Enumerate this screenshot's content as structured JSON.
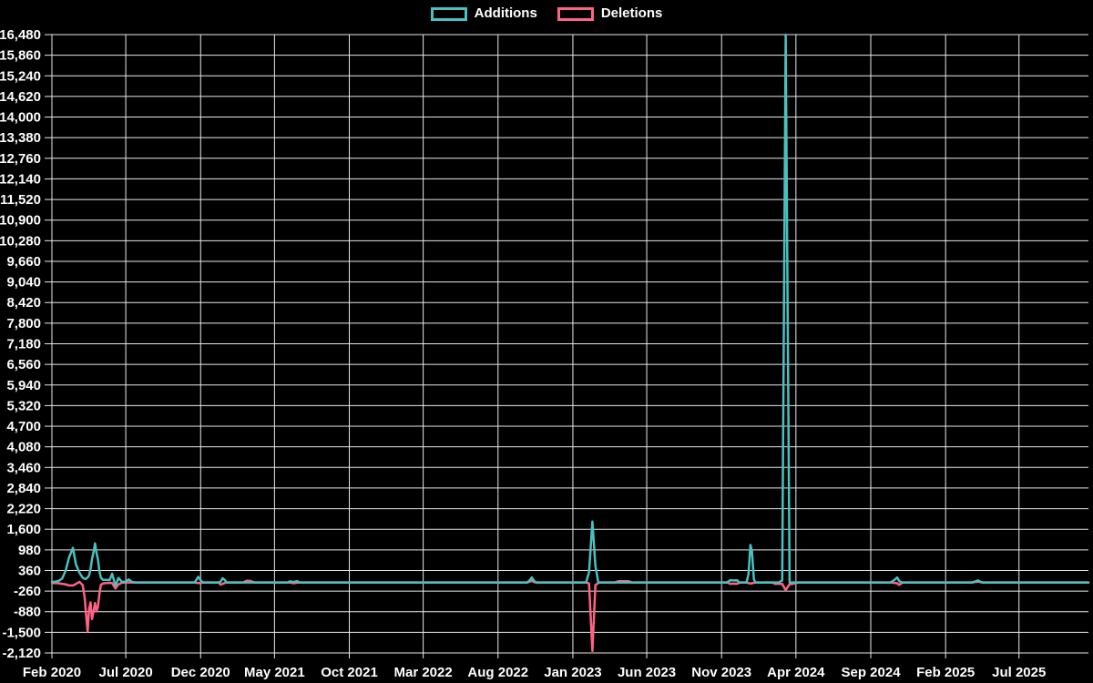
{
  "chart_data": {
    "type": "line",
    "title": "",
    "background": "#000000",
    "text_color": "#ffffff",
    "grid_color": "#e9e9e9",
    "legend_position": "top-center",
    "grid": true,
    "y_axis": {
      "min": -2120,
      "max": 16480,
      "step": 620
    },
    "x_axis": {
      "domain": [
        "2020-02-01",
        "2025-11-20"
      ],
      "ticks": [
        {
          "label": "Feb 2020",
          "date": "2020-02-01"
        },
        {
          "label": "Jul 2020",
          "date": "2020-07-01"
        },
        {
          "label": "Dec 2020",
          "date": "2020-12-01"
        },
        {
          "label": "May 2021",
          "date": "2021-05-01"
        },
        {
          "label": "Oct 2021",
          "date": "2021-10-01"
        },
        {
          "label": "Mar 2022",
          "date": "2022-03-01"
        },
        {
          "label": "Aug 2022",
          "date": "2022-08-01"
        },
        {
          "label": "Jan 2023",
          "date": "2023-01-01"
        },
        {
          "label": "Jun 2023",
          "date": "2023-06-01"
        },
        {
          "label": "Nov 2023",
          "date": "2023-11-01"
        },
        {
          "label": "Apr 2024",
          "date": "2024-04-01"
        },
        {
          "label": "Sep 2024",
          "date": "2024-09-01"
        },
        {
          "label": "Feb 2025",
          "date": "2025-02-01"
        },
        {
          "label": "Jul 2025",
          "date": "2025-07-01"
        }
      ]
    },
    "series": [
      {
        "name": "Additions",
        "color": "#4bc0c0"
      },
      {
        "name": "Deletions",
        "color": "#ff6384"
      }
    ],
    "points": [
      [
        "2020-02-01",
        20,
        -15
      ],
      [
        "2020-02-08",
        25,
        -20
      ],
      [
        "2020-02-15",
        50,
        -25
      ],
      [
        "2020-02-22",
        120,
        -40
      ],
      [
        "2020-02-29",
        350,
        -55
      ],
      [
        "2020-03-07",
        750,
        -90
      ],
      [
        "2020-03-15",
        1040,
        -90
      ],
      [
        "2020-03-21",
        550,
        -45
      ],
      [
        "2020-03-28",
        300,
        20
      ],
      [
        "2020-04-04",
        140,
        -80
      ],
      [
        "2020-04-08",
        110,
        -460
      ],
      [
        "2020-04-11",
        110,
        -1000
      ],
      [
        "2020-04-14",
        150,
        -1470
      ],
      [
        "2020-04-17",
        210,
        -800
      ],
      [
        "2020-04-20",
        400,
        -600
      ],
      [
        "2020-04-23",
        700,
        -1100
      ],
      [
        "2020-04-26",
        900,
        -880
      ],
      [
        "2020-04-29",
        1175,
        -620
      ],
      [
        "2020-05-02",
        900,
        -860
      ],
      [
        "2020-05-05",
        700,
        -740
      ],
      [
        "2020-05-08",
        350,
        -350
      ],
      [
        "2020-05-11",
        150,
        -80
      ],
      [
        "2020-05-15",
        80,
        -30
      ],
      [
        "2020-05-22",
        80,
        -15
      ],
      [
        "2020-05-29",
        75,
        -10
      ],
      [
        "2020-06-03",
        265,
        -20
      ],
      [
        "2020-06-10",
        -100,
        -180
      ],
      [
        "2020-06-16",
        140,
        -60
      ],
      [
        "2020-06-23",
        20,
        -10
      ],
      [
        "2020-06-30",
        20,
        0
      ],
      [
        "2020-07-07",
        90,
        0
      ],
      [
        "2020-07-14",
        15,
        0
      ],
      [
        "2020-07-21",
        0,
        0
      ],
      [
        "2020-11-19",
        0,
        0
      ],
      [
        "2020-11-26",
        170,
        -20
      ],
      [
        "2020-12-03",
        30,
        -10
      ],
      [
        "2020-12-06",
        0,
        0
      ],
      [
        "2021-01-07",
        0,
        0
      ],
      [
        "2021-01-11",
        30,
        -65
      ],
      [
        "2021-01-15",
        125,
        -40
      ],
      [
        "2021-01-19",
        80,
        -15
      ],
      [
        "2021-01-23",
        0,
        0
      ],
      [
        "2021-02-26",
        0,
        0
      ],
      [
        "2021-03-05",
        0,
        50
      ],
      [
        "2021-03-12",
        0,
        48
      ],
      [
        "2021-03-19",
        0,
        10
      ],
      [
        "2021-03-22",
        0,
        0
      ],
      [
        "2021-05-28",
        0,
        0
      ],
      [
        "2021-06-02",
        35,
        -5
      ],
      [
        "2021-06-09",
        10,
        -22
      ],
      [
        "2021-06-16",
        40,
        -8
      ],
      [
        "2021-06-21",
        0,
        0
      ],
      [
        "2022-09-30",
        0,
        0
      ],
      [
        "2022-10-05",
        70,
        25
      ],
      [
        "2022-10-09",
        150,
        55
      ],
      [
        "2022-10-14",
        40,
        15
      ],
      [
        "2022-10-18",
        0,
        0
      ],
      [
        "2023-01-28",
        0,
        0
      ],
      [
        "2023-02-03",
        310,
        -30
      ],
      [
        "2023-02-10",
        1830,
        -2060
      ],
      [
        "2023-02-16",
        500,
        -80
      ],
      [
        "2023-02-22",
        0,
        -10
      ],
      [
        "2023-02-28",
        0,
        0
      ],
      [
        "2023-03-28",
        0,
        0
      ],
      [
        "2023-04-04",
        0,
        35
      ],
      [
        "2023-04-25",
        0,
        35
      ],
      [
        "2023-05-02",
        0,
        0
      ],
      [
        "2023-11-12",
        0,
        0
      ],
      [
        "2023-11-19",
        70,
        -40
      ],
      [
        "2023-11-26",
        60,
        -35
      ],
      [
        "2023-12-03",
        65,
        -38
      ],
      [
        "2023-12-07",
        0,
        -10
      ],
      [
        "2023-12-10",
        0,
        0
      ],
      [
        "2023-12-22",
        0,
        0
      ],
      [
        "2023-12-26",
        250,
        -20
      ],
      [
        "2023-12-30",
        1130,
        -30
      ],
      [
        "2024-01-02",
        950,
        -25
      ],
      [
        "2024-01-06",
        100,
        -10
      ],
      [
        "2024-01-09",
        0,
        0
      ],
      [
        "2024-02-12",
        0,
        0
      ],
      [
        "2024-02-19",
        0,
        -40
      ],
      [
        "2024-02-26",
        0,
        -40
      ],
      [
        "2024-03-04",
        60,
        -45
      ],
      [
        "2024-03-11",
        16480,
        -230
      ],
      [
        "2024-03-19",
        0,
        -50
      ],
      [
        "2024-03-26",
        0,
        -40
      ],
      [
        "2024-04-02",
        0,
        -10
      ],
      [
        "2024-04-06",
        0,
        0
      ],
      [
        "2024-10-11",
        0,
        0
      ],
      [
        "2024-10-18",
        60,
        -10
      ],
      [
        "2024-10-25",
        150,
        -25
      ],
      [
        "2024-10-29",
        40,
        -70
      ],
      [
        "2024-11-04",
        0,
        -10
      ],
      [
        "2024-11-08",
        0,
        0
      ],
      [
        "2025-03-27",
        0,
        0
      ],
      [
        "2025-04-02",
        30,
        15
      ],
      [
        "2025-04-08",
        60,
        25
      ],
      [
        "2025-04-14",
        15,
        8
      ],
      [
        "2025-04-18",
        0,
        0
      ],
      [
        "2025-11-20",
        0,
        0
      ]
    ]
  }
}
